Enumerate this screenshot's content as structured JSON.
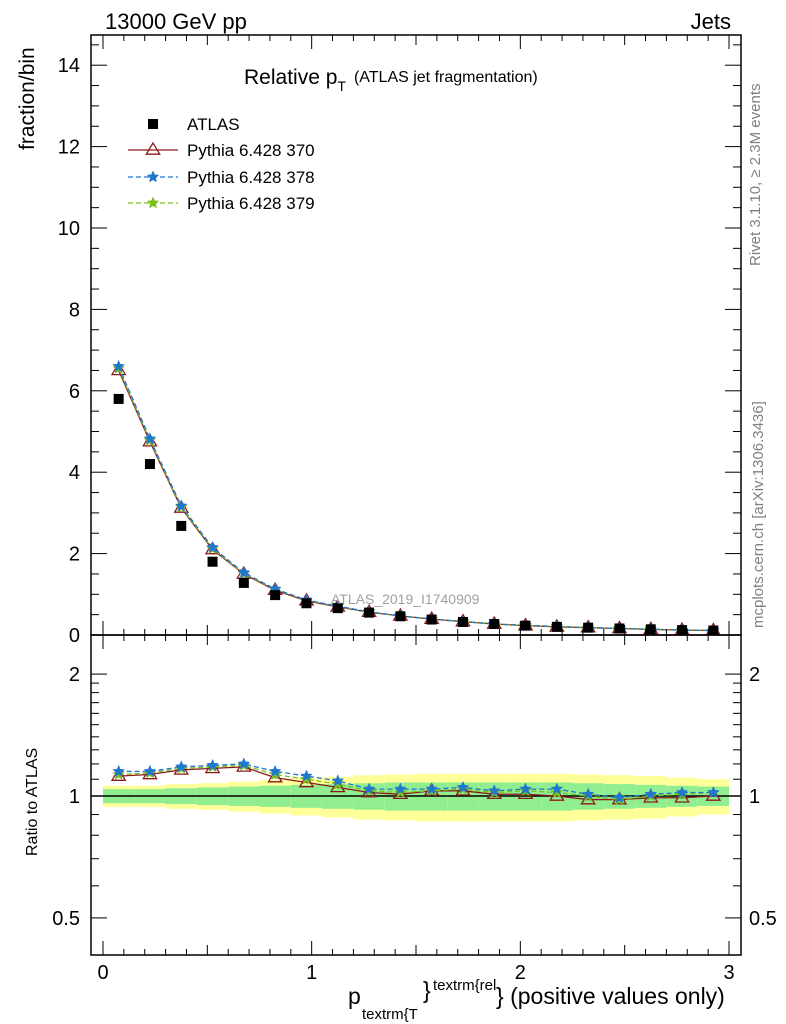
{
  "header": {
    "left": "13000 GeV pp",
    "right": "Jets"
  },
  "side_labels": {
    "upper": "Rivet 3.1.10, ≥ 2.3M events",
    "lower": "mcplots.cern.ch [arXiv:1306.3436]"
  },
  "chart_data": {
    "type": "line",
    "title_main": "Relative p",
    "title_sub": "T",
    "title_rest": "(ATLAS jet fragmentation)",
    "watermark": "ATLAS_2019_I1740909",
    "ylabel": "fraction/bin",
    "ratio_ylabel": "Ratio to ATLAS",
    "xlabel_p": "p",
    "xlabel_sub": "textrm{T",
    "xlabel_sup": "textrm{rel",
    "xlabel_brace": "}",
    "xlabel_rest": "} (positive values only)",
    "xlim": [
      0,
      3
    ],
    "ylim": [
      0,
      14.5
    ],
    "ratio_ylim": [
      0.35,
      2.35
    ],
    "x_ticks": [
      "0",
      "1",
      "2",
      "3"
    ],
    "y_ticks": [
      "0",
      "2",
      "4",
      "6",
      "8",
      "10",
      "12",
      "14"
    ],
    "ratio_ticks": [
      "0.5",
      "1",
      "2"
    ],
    "x": [
      0.075,
      0.225,
      0.375,
      0.525,
      0.675,
      0.825,
      0.975,
      1.125,
      1.275,
      1.425,
      1.575,
      1.725,
      1.875,
      2.025,
      2.175,
      2.325,
      2.475,
      2.625,
      2.775,
      2.925
    ],
    "series": [
      {
        "name": "ATLAS",
        "color": "#000000",
        "values": [
          5.8,
          4.2,
          2.68,
          1.8,
          1.28,
          0.98,
          0.78,
          0.66,
          0.55,
          0.46,
          0.38,
          0.32,
          0.27,
          0.23,
          0.2,
          0.18,
          0.16,
          0.14,
          0.12,
          0.11
        ]
      },
      {
        "name": "Pythia 6.428 370",
        "color": "#8b1a1a",
        "values": [
          6.5,
          4.75,
          3.12,
          2.1,
          1.5,
          1.1,
          0.84,
          0.69,
          0.56,
          0.47,
          0.39,
          0.33,
          0.27,
          0.23,
          0.2,
          0.18,
          0.16,
          0.14,
          0.12,
          0.11
        ],
        "ratio": [
          1.12,
          1.13,
          1.16,
          1.17,
          1.18,
          1.11,
          1.08,
          1.05,
          1.02,
          1.01,
          1.03,
          1.03,
          1.01,
          1.01,
          1.0,
          0.98,
          0.98,
          0.99,
          0.99,
          1.0
        ]
      },
      {
        "name": "Pythia 6.428 378",
        "color": "#1f77d0",
        "values": [
          6.6,
          4.82,
          3.17,
          2.15,
          1.53,
          1.13,
          0.86,
          0.71,
          0.57,
          0.47,
          0.39,
          0.33,
          0.27,
          0.24,
          0.21,
          0.18,
          0.16,
          0.14,
          0.12,
          0.11
        ],
        "ratio": [
          1.15,
          1.15,
          1.18,
          1.19,
          1.2,
          1.15,
          1.12,
          1.09,
          1.04,
          1.04,
          1.04,
          1.05,
          1.03,
          1.04,
          1.04,
          1.01,
          0.99,
          1.01,
          1.02,
          1.02
        ]
      },
      {
        "name": "Pythia 6.428 379",
        "color": "#7bc11a",
        "values": [
          6.55,
          4.78,
          3.14,
          2.12,
          1.51,
          1.12,
          0.85,
          0.7,
          0.56,
          0.47,
          0.39,
          0.33,
          0.27,
          0.23,
          0.21,
          0.18,
          0.16,
          0.14,
          0.12,
          0.11
        ],
        "ratio": [
          1.13,
          1.14,
          1.17,
          1.18,
          1.19,
          1.13,
          1.1,
          1.07,
          1.03,
          1.02,
          1.03,
          1.04,
          1.02,
          1.03,
          1.02,
          1.0,
          0.98,
          1.0,
          1.01,
          1.02
        ]
      }
    ],
    "band_inner": [
      [
        0.96,
        1.04
      ],
      [
        0.96,
        1.04
      ],
      [
        0.955,
        1.045
      ],
      [
        0.95,
        1.05
      ],
      [
        0.945,
        1.055
      ],
      [
        0.94,
        1.06
      ],
      [
        0.935,
        1.065
      ],
      [
        0.93,
        1.07
      ],
      [
        0.925,
        1.075
      ],
      [
        0.92,
        1.08
      ],
      [
        0.92,
        1.08
      ],
      [
        0.92,
        1.08
      ],
      [
        0.92,
        1.08
      ],
      [
        0.92,
        1.08
      ],
      [
        0.92,
        1.08
      ],
      [
        0.925,
        1.075
      ],
      [
        0.93,
        1.07
      ],
      [
        0.935,
        1.065
      ],
      [
        0.94,
        1.06
      ],
      [
        0.945,
        1.055
      ]
    ],
    "band_outer": [
      [
        0.94,
        1.06
      ],
      [
        0.94,
        1.06
      ],
      [
        0.93,
        1.07
      ],
      [
        0.925,
        1.075
      ],
      [
        0.915,
        1.085
      ],
      [
        0.905,
        1.095
      ],
      [
        0.895,
        1.105
      ],
      [
        0.885,
        1.115
      ],
      [
        0.875,
        1.125
      ],
      [
        0.87,
        1.13
      ],
      [
        0.865,
        1.135
      ],
      [
        0.865,
        1.135
      ],
      [
        0.865,
        1.135
      ],
      [
        0.865,
        1.135
      ],
      [
        0.865,
        1.135
      ],
      [
        0.87,
        1.13
      ],
      [
        0.875,
        1.125
      ],
      [
        0.88,
        1.12
      ],
      [
        0.89,
        1.11
      ],
      [
        0.9,
        1.1
      ]
    ],
    "band_colors": {
      "inner": "#90ee90",
      "outer": "#ffff99"
    },
    "grid": false,
    "legend_position": "top-left"
  }
}
